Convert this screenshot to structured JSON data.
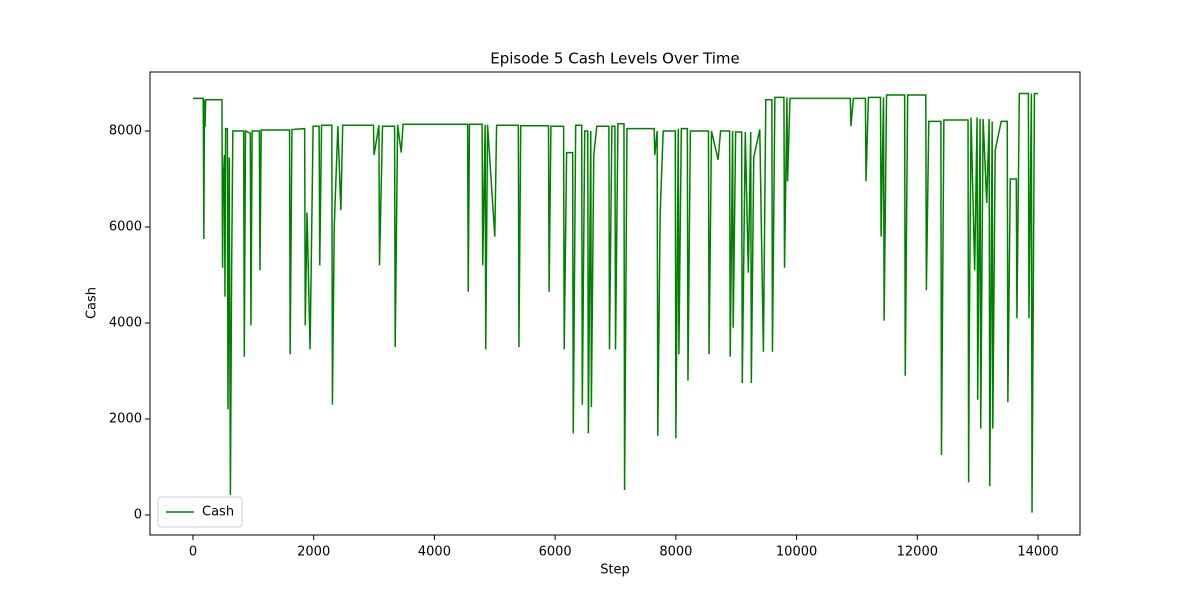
{
  "chart_data": {
    "type": "line",
    "title": "Episode 5 Cash Levels Over Time",
    "xlabel": "Step",
    "ylabel": "Cash",
    "xlim": [
      -712,
      14695
    ],
    "ylim": [
      -417,
      9229
    ],
    "xticks": [
      0,
      2000,
      4000,
      6000,
      8000,
      10000,
      12000,
      14000
    ],
    "yticks": [
      0,
      2000,
      4000,
      6000,
      8000
    ],
    "legend": "lower left",
    "x": [
      0,
      170,
      180,
      190,
      200,
      210,
      480,
      490,
      500,
      520,
      530,
      540,
      570,
      580,
      600,
      620,
      640,
      660,
      840,
      850,
      870,
      950,
      960,
      980,
      1100,
      1110,
      1130,
      1600,
      1610,
      1640,
      1850,
      1860,
      1890,
      1940,
      1990,
      2090,
      2100,
      2130,
      2300,
      2310,
      2340,
      2400,
      2450,
      2480,
      2990,
      3000,
      3080,
      3090,
      3140,
      3340,
      3350,
      3390,
      3450,
      3480,
      4550,
      4560,
      4580,
      4790,
      4800,
      4840,
      4850,
      4880,
      5000,
      5030,
      5390,
      5400,
      5430,
      5890,
      5900,
      5930,
      6140,
      6150,
      6190,
      6290,
      6300,
      6340,
      6440,
      6450,
      6490,
      6540,
      6550,
      6590,
      6600,
      6640,
      6690,
      6890,
      6900,
      6940,
      6990,
      7000,
      7040,
      7140,
      7150,
      7190,
      7640,
      7650,
      7690,
      7700,
      7740,
      7790,
      7990,
      8000,
      8040,
      8050,
      8090,
      8190,
      8200,
      8240,
      8540,
      8550,
      8590,
      8700,
      8740,
      8890,
      8900,
      8940,
      8950,
      8990,
      9090,
      9100,
      9150,
      9200,
      9240,
      9250,
      9290,
      9390,
      9450,
      9490,
      9590,
      9600,
      9640,
      9790,
      9800,
      9840,
      9850,
      9890,
      10890,
      10900,
      10940,
      11140,
      11150,
      11190,
      11390,
      11400,
      11440,
      11450,
      11490,
      11790,
      11800,
      11840,
      12140,
      12150,
      12190,
      12390,
      12400,
      12440,
      12840,
      12850,
      12860,
      12890,
      12950,
      12990,
      13000,
      13040,
      13050,
      13090,
      13150,
      13190,
      13200,
      13240,
      13250,
      13290,
      13390,
      13490,
      13500,
      13540,
      13640,
      13650,
      13690,
      13840,
      13850,
      13890,
      13900,
      13940,
      14000
    ],
    "series": [
      {
        "name": "Cash",
        "color": "green",
        "values": [
          8680,
          8680,
          5750,
          8650,
          8080,
          8650,
          8650,
          5150,
          6900,
          7500,
          4550,
          8050,
          8050,
          2200,
          7450,
          420,
          5050,
          8000,
          8000,
          3300,
          8000,
          7950,
          3950,
          8000,
          8000,
          5100,
          8020,
          8020,
          3350,
          8030,
          8050,
          3950,
          6300,
          3450,
          8100,
          8100,
          5200,
          8120,
          8120,
          2300,
          6000,
          8100,
          6350,
          8120,
          8120,
          7500,
          8120,
          5200,
          8100,
          8100,
          3500,
          8130,
          7550,
          8140,
          8140,
          4650,
          8140,
          8140,
          5200,
          8130,
          3450,
          8130,
          5800,
          8120,
          8120,
          3500,
          8110,
          8110,
          4650,
          8100,
          8100,
          3450,
          7550,
          7550,
          1700,
          8120,
          8120,
          2300,
          8000,
          8000,
          1700,
          8000,
          2250,
          7500,
          8100,
          8100,
          3450,
          8100,
          8100,
          3450,
          8150,
          8150,
          520,
          8050,
          8050,
          7500,
          8000,
          1650,
          6300,
          8000,
          8000,
          1600,
          8050,
          3350,
          8050,
          8050,
          2800,
          8000,
          8000,
          3350,
          8000,
          7400,
          8000,
          8000,
          3300,
          8000,
          3900,
          7980,
          7980,
          2750,
          7980,
          5050,
          7980,
          2750,
          7450,
          8030,
          3400,
          8650,
          8650,
          3400,
          8700,
          8700,
          5150,
          8700,
          6950,
          8680,
          8680,
          8100,
          8680,
          8680,
          6950,
          8700,
          8700,
          5800,
          8700,
          4050,
          8750,
          8750,
          2900,
          8750,
          8750,
          4680,
          8200,
          8200,
          1250,
          8230,
          8230,
          680,
          3600,
          8280,
          5100,
          8280,
          2400,
          8250,
          1800,
          8250,
          6500,
          8250,
          600,
          8200,
          1800,
          7600,
          8200,
          8200,
          2350,
          7000,
          7000,
          4100,
          8780,
          8780,
          4100,
          8780,
          50,
          8780,
          8780
        ]
      }
    ]
  }
}
